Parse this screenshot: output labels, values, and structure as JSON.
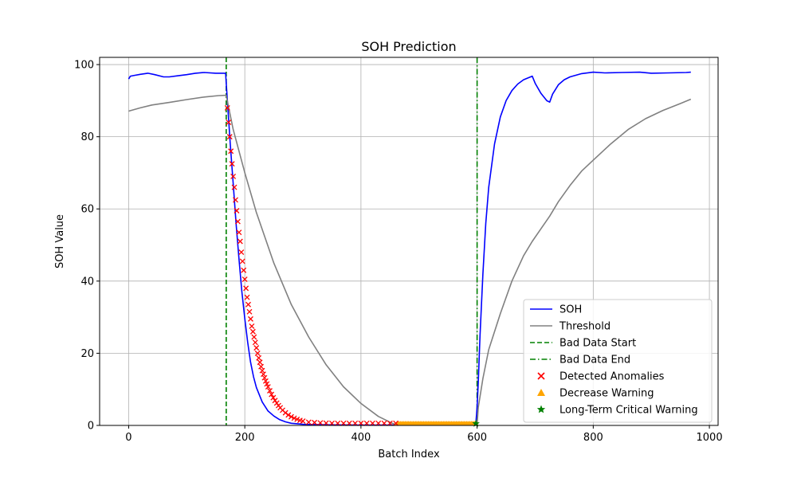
{
  "chart_data": {
    "type": "line",
    "title": "SOH Prediction",
    "xlabel": "Batch Index",
    "ylabel": "SOH Value",
    "xlim": [
      -50,
      1015
    ],
    "ylim": [
      0,
      102
    ],
    "xticks": [
      0,
      200,
      400,
      600,
      800,
      1000
    ],
    "yticks": [
      0,
      20,
      40,
      60,
      80,
      100
    ],
    "grid": true,
    "legend_position": "bottom-right",
    "colors": {
      "soh": "#0000ff",
      "threshold": "#808080",
      "bad_data": "#008000",
      "anomaly": "#ff0000",
      "decrease": "#ffa500",
      "critical": "#008000"
    },
    "legend": [
      {
        "label": "SOH",
        "kind": "line",
        "color": "#0000ff"
      },
      {
        "label": "Threshold",
        "kind": "line",
        "color": "#808080"
      },
      {
        "label": "Bad Data Start",
        "kind": "dashed",
        "color": "#008000"
      },
      {
        "label": "Bad Data End",
        "kind": "dashdot",
        "color": "#008000"
      },
      {
        "label": "Detected Anomalies",
        "kind": "x",
        "color": "#ff0000"
      },
      {
        "label": "Decrease Warning",
        "kind": "triangle",
        "color": "#ffa500"
      },
      {
        "label": "Long-Term Critical Warning",
        "kind": "star",
        "color": "#008000"
      }
    ],
    "vlines": [
      {
        "name": "Bad Data Start",
        "x": 168,
        "style": "dashed",
        "color": "#008000"
      },
      {
        "name": "Bad Data End",
        "x": 600,
        "style": "dashdot",
        "color": "#008000"
      }
    ],
    "series": [
      {
        "name": "SOH",
        "color": "#0000ff",
        "x": [
          0,
          3,
          10,
          20,
          33,
          45,
          60,
          70,
          85,
          100,
          115,
          130,
          150,
          165,
          167,
          168,
          170,
          172,
          175,
          180,
          185,
          190,
          195,
          200,
          205,
          210,
          215,
          220,
          230,
          240,
          250,
          260,
          270,
          280,
          300,
          350,
          400,
          450,
          500,
          550,
          595,
          598,
          600,
          602,
          605,
          610,
          615,
          620,
          630,
          640,
          650,
          660,
          670,
          680,
          695,
          700,
          710,
          720,
          725,
          730,
          740,
          750,
          760,
          780,
          800,
          820,
          850,
          880,
          900,
          930,
          960,
          968
        ],
        "y": [
          96.0,
          96.8,
          97.0,
          97.3,
          97.6,
          97.2,
          96.6,
          96.6,
          96.9,
          97.2,
          97.6,
          97.8,
          97.6,
          97.6,
          97.6,
          95.0,
          90.0,
          85.0,
          78.0,
          67.0,
          56.0,
          46.0,
          37.0,
          29.5,
          23.0,
          17.5,
          13.5,
          10.5,
          6.5,
          4.0,
          2.6,
          1.6,
          1.0,
          0.6,
          0.3,
          0.15,
          0.1,
          0.1,
          0.1,
          0.1,
          0.2,
          1.0,
          5.0,
          12.0,
          25.0,
          42.0,
          56.0,
          66.0,
          78.0,
          85.5,
          90.0,
          92.8,
          94.6,
          95.8,
          96.8,
          94.8,
          92.0,
          90.0,
          89.6,
          91.8,
          94.4,
          95.8,
          96.6,
          97.5,
          97.9,
          97.7,
          97.8,
          97.9,
          97.6,
          97.7,
          97.8,
          97.9
        ]
      },
      {
        "name": "Threshold",
        "color": "#808080",
        "x": [
          0,
          20,
          40,
          70,
          100,
          130,
          155,
          168,
          180,
          200,
          220,
          250,
          280,
          310,
          340,
          370,
          400,
          430,
          455,
          462,
          600,
          602,
          610,
          620,
          640,
          660,
          680,
          695,
          710,
          725,
          740,
          760,
          780,
          800,
          830,
          860,
          890,
          920,
          950,
          968
        ],
        "y": [
          87.1,
          88.0,
          88.8,
          89.5,
          90.3,
          91.0,
          91.4,
          91.5,
          82.0,
          70.0,
          59.0,
          45.0,
          33.5,
          24.5,
          16.8,
          10.7,
          6.1,
          2.5,
          0.5,
          0.2,
          0.2,
          5.0,
          13.0,
          21.0,
          31.0,
          40.0,
          47.0,
          51.0,
          54.5,
          58.0,
          62.0,
          66.5,
          70.5,
          73.5,
          78.0,
          82.0,
          85.0,
          87.3,
          89.2,
          90.4
        ]
      }
    ],
    "anomalies": {
      "name": "Detected Anomalies",
      "x": [
        170,
        172,
        174,
        176,
        178,
        180,
        182,
        184,
        186,
        188,
        190,
        192,
        194,
        196,
        198,
        200,
        202,
        204,
        206,
        208,
        210,
        212,
        214,
        216,
        218,
        220,
        222,
        224,
        226,
        228,
        230,
        232,
        234,
        236,
        238,
        240,
        243,
        246,
        249,
        252,
        255,
        258,
        261,
        265,
        270,
        275,
        280,
        285,
        290,
        295,
        300,
        310,
        320,
        330,
        340,
        350,
        360,
        370,
        380,
        390,
        400,
        410,
        420,
        430,
        440,
        450,
        460
      ],
      "y": [
        88,
        84,
        80,
        76,
        72.5,
        69,
        66,
        62.5,
        59.5,
        56.5,
        53.5,
        51,
        48,
        45.5,
        43,
        40.5,
        38,
        35.5,
        33.5,
        31.5,
        29.5,
        27.5,
        26,
        24.5,
        23,
        21.5,
        20,
        18.7,
        17.5,
        16.3,
        15.2,
        14.2,
        13.2,
        12.3,
        11.5,
        10.7,
        9.6,
        8.6,
        7.7,
        6.9,
        6.2,
        5.5,
        4.9,
        4.2,
        3.5,
        2.9,
        2.4,
        2.0,
        1.7,
        1.4,
        1.2,
        0.9,
        0.8,
        0.7,
        0.65,
        0.6,
        0.6,
        0.6,
        0.6,
        0.6,
        0.6,
        0.6,
        0.6,
        0.6,
        0.6,
        0.6,
        0.6
      ]
    },
    "decrease_warning": {
      "name": "Decrease Warning",
      "x_start": 462,
      "x_end": 598,
      "y": 0.6
    },
    "critical_warning": {
      "name": "Long-Term Critical Warning",
      "x": [
        598
      ],
      "y": [
        0.5
      ]
    }
  }
}
